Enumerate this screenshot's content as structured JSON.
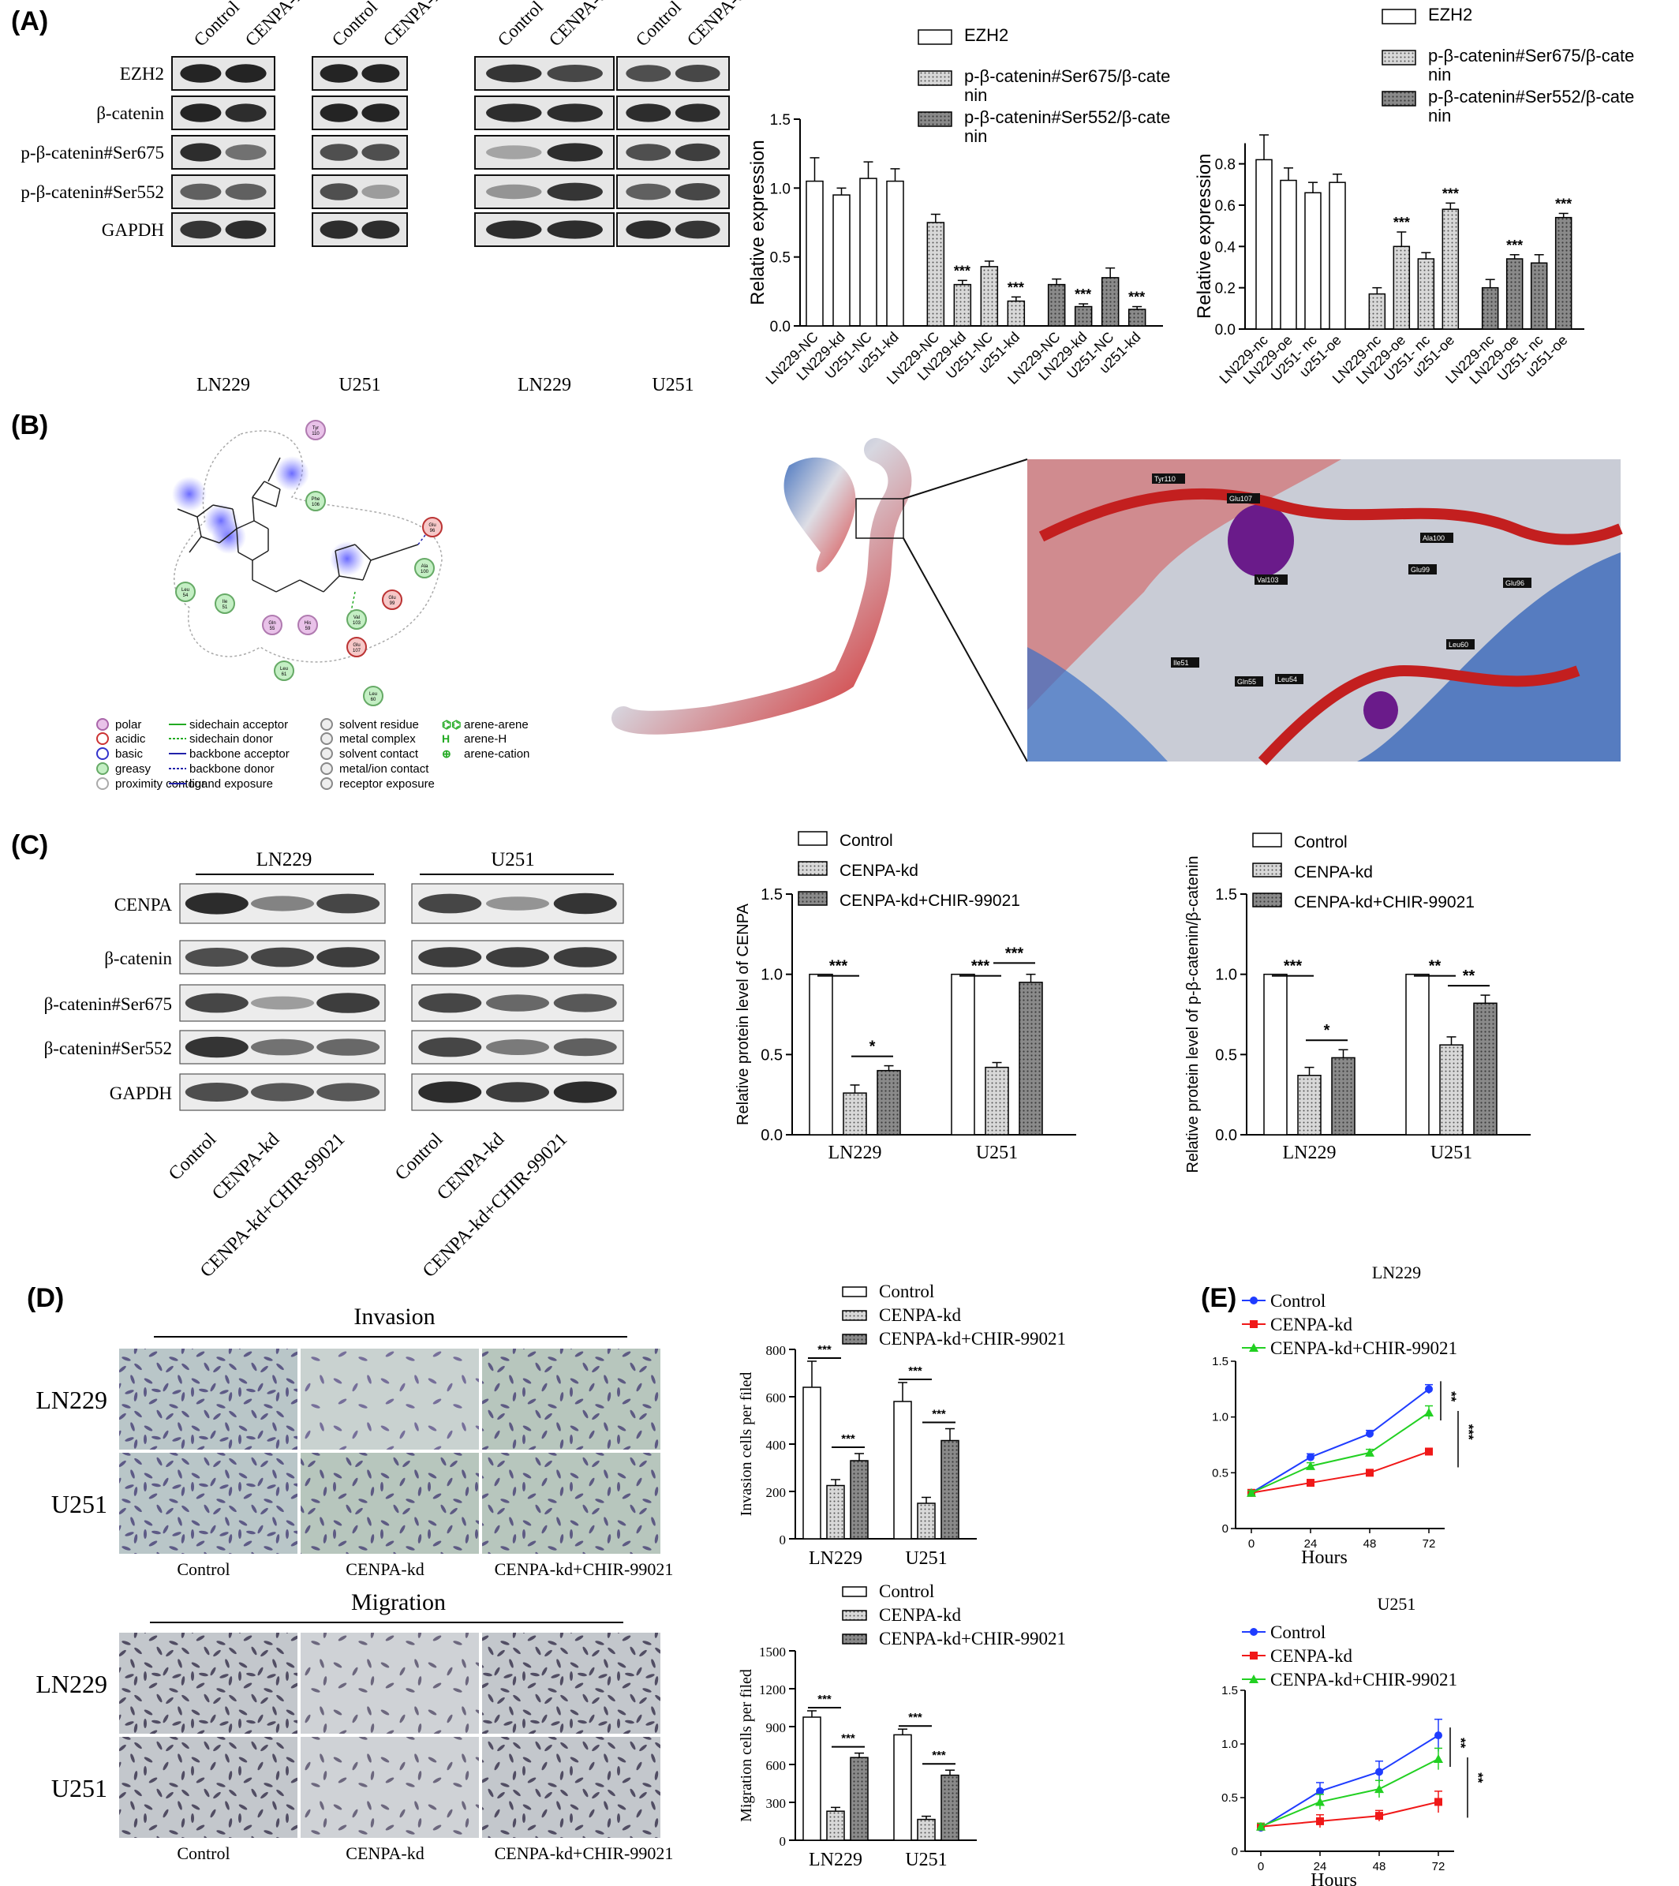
{
  "panels": {
    "A": {
      "letter": "(A)",
      "blot": {
        "lane_labels": [
          "Control",
          "CENPA-kd",
          "Control",
          "CENPA-kd",
          "Control",
          "CENPA-oe",
          "Control",
          "CENPA-oe"
        ],
        "rows": [
          "EZH2",
          "β-catenin",
          "p-β-catenin#Ser675",
          "p-β-catenin#Ser552",
          "GAPDH"
        ],
        "cell_lines": [
          "LN229",
          "U251",
          "LN229",
          "U251"
        ]
      },
      "legend": [
        "EZH2",
        "p-β-catenin#Ser675/β-cate nin",
        "p-β-catenin#Ser552/β-cate nin"
      ]
    },
    "B": {
      "letter": "(B)",
      "residues": [
        "Tyr 110",
        "Phe 106",
        "Glu 96",
        "Ala 100",
        "Leu 54",
        "Ile 51",
        "Gln 55",
        "His 59",
        "Val 103",
        "Glu 99",
        "Glu 107",
        "Leu 61",
        "Leu 60"
      ],
      "legend": [
        [
          "polar",
          "sidechain acceptor",
          "solvent residue",
          "arene-arene"
        ],
        [
          "acidic",
          "sidechain donor",
          "metal complex",
          "arene-H"
        ],
        [
          "basic",
          "backbone acceptor",
          "solvent contact",
          "arene-cation"
        ],
        [
          "greasy",
          "backbone donor",
          "metal/ion contact",
          ""
        ],
        [
          "proximity contour",
          "ligand exposure",
          "receptor exposure",
          ""
        ]
      ],
      "zoom_labels": [
        "Tyr110",
        "Glu107",
        "Ala100",
        "Val103",
        "Glu99",
        "Glu96",
        "Leu60",
        "Ile51",
        "Gln55",
        "Leu54"
      ]
    },
    "C": {
      "letter": "(C)",
      "blot": {
        "cell_lines": [
          "LN229",
          "U251"
        ],
        "rows": [
          "CENPA",
          "β-catenin",
          "β-catenin#Ser675",
          "β-catenin#Ser552",
          "GAPDH"
        ],
        "lane_labels": [
          "Control",
          "CENPA-kd",
          "CENPA-kd+CHIR-99021",
          "Control",
          "CENPA-kd",
          "CENPA-kd+CHIR-99021"
        ]
      },
      "legend": [
        "Control",
        "CENPA-kd",
        "CENPA-kd+CHIR-99021"
      ]
    },
    "D": {
      "letter": "(D)",
      "invasion_title": "Invasion",
      "migration_title": "Migration",
      "row_labels": [
        "LN229",
        "U251"
      ],
      "col_labels": [
        "Control",
        "CENPA-kd",
        "CENPA-kd+CHIR-99021"
      ],
      "legend": [
        "Control",
        "CENPA-kd",
        "CENPA-kd+CHIR-99021"
      ]
    },
    "E": {
      "letter": "(E)",
      "legend": [
        "Control",
        "CENPA-kd",
        "CENPA-kd+CHIR-99021"
      ]
    }
  },
  "colors": {
    "blue": "#1f3cff",
    "red": "#f01818",
    "green": "#22d022",
    "blot_bg": "#dcdcdc",
    "band": "#202020"
  },
  "chart_data": [
    {
      "id": "A1",
      "type": "bar",
      "categories": [
        "LN229-NC",
        "LN229-kd",
        "U251-NC",
        "u251-kd"
      ],
      "series": [
        {
          "name": "EZH2",
          "values": [
            1.05,
            0.95,
            1.07,
            1.05
          ],
          "errors": [
            0.17,
            0.05,
            0.12,
            0.09
          ]
        },
        {
          "name": "p-β-catenin#Ser675/β-cate nin",
          "values": [
            0.75,
            0.3,
            0.43,
            0.18
          ],
          "errors": [
            0.06,
            0.03,
            0.04,
            0.03
          ]
        },
        {
          "name": "p-β-catenin#Ser552/β-cate nin",
          "values": [
            0.3,
            0.14,
            0.35,
            0.12
          ],
          "errors": [
            0.04,
            0.02,
            0.07,
            0.02
          ]
        }
      ],
      "annotations": [
        "",
        "***",
        "",
        "***"
      ],
      "ylabel": "Relative expression",
      "ylim": [
        0,
        1.5
      ],
      "yticks": [
        "0.0",
        "0.5",
        "1.0",
        "1.5"
      ]
    },
    {
      "id": "A2",
      "type": "bar",
      "categories": [
        "LN229-nc",
        "LN229-oe",
        "U251- nc",
        "u251-oe"
      ],
      "series": [
        {
          "name": "EZH2",
          "values": [
            0.82,
            0.72,
            0.66,
            0.71
          ],
          "errors": [
            0.12,
            0.06,
            0.05,
            0.04
          ]
        },
        {
          "name": "p-β-catenin#Ser675/β-cate nin",
          "values": [
            0.17,
            0.4,
            0.34,
            0.58
          ],
          "errors": [
            0.03,
            0.07,
            0.03,
            0.03
          ]
        },
        {
          "name": "p-β-catenin#Ser552/β-cate nin",
          "values": [
            0.2,
            0.34,
            0.32,
            0.54
          ],
          "errors": [
            0.04,
            0.02,
            0.04,
            0.02
          ]
        }
      ],
      "annotations": [
        "",
        "***",
        "",
        "***"
      ],
      "ylabel": "Relative expression",
      "ylim": [
        0,
        0.9
      ],
      "yticks": [
        "0.0",
        "0.2",
        "0.4",
        "0.6",
        "0.8"
      ]
    },
    {
      "id": "C1",
      "type": "bar",
      "categories": [
        "LN229",
        "U251"
      ],
      "series": [
        {
          "name": "Control",
          "values": [
            1.0,
            1.0
          ],
          "errors": [
            0,
            0
          ]
        },
        {
          "name": "CENPA-kd",
          "values": [
            0.26,
            0.42
          ],
          "errors": [
            0.05,
            0.03
          ]
        },
        {
          "name": "CENPA-kd+CHIR-99021",
          "values": [
            0.4,
            0.95
          ],
          "errors": [
            0.03,
            0.05
          ]
        }
      ],
      "annotations": [
        [
          "***",
          "*"
        ],
        [
          "***",
          "***"
        ]
      ],
      "ylabel": "Relative protein level of CENPA",
      "ylim": [
        0,
        1.5
      ],
      "yticks": [
        "0.0",
        "0.5",
        "1.0",
        "1.5"
      ]
    },
    {
      "id": "C2",
      "type": "bar",
      "categories": [
        "LN229",
        "U251"
      ],
      "series": [
        {
          "name": "Control",
          "values": [
            1.0,
            1.0
          ],
          "errors": [
            0,
            0
          ]
        },
        {
          "name": "CENPA-kd",
          "values": [
            0.37,
            0.56
          ],
          "errors": [
            0.05,
            0.05
          ]
        },
        {
          "name": "CENPA-kd+CHIR-99021",
          "values": [
            0.48,
            0.82
          ],
          "errors": [
            0.05,
            0.05
          ]
        }
      ],
      "annotations": [
        [
          "***",
          "*"
        ],
        [
          "**",
          "**"
        ]
      ],
      "ylabel": "Relative protein level of p-β-catenin/β-catenin",
      "ylim": [
        0,
        1.5
      ],
      "yticks": [
        "0.0",
        "0.5",
        "1.0",
        "1.5"
      ]
    },
    {
      "id": "D1",
      "type": "bar",
      "categories": [
        "LN229",
        "U251"
      ],
      "series": [
        {
          "name": "Control",
          "values": [
            640,
            580
          ],
          "errors": [
            110,
            80
          ]
        },
        {
          "name": "CENPA-kd",
          "values": [
            225,
            150
          ],
          "errors": [
            25,
            25
          ]
        },
        {
          "name": "CENPA-kd+CHIR-99021",
          "values": [
            330,
            415
          ],
          "errors": [
            30,
            50
          ]
        }
      ],
      "annotations": [
        [
          "***",
          "***"
        ],
        [
          "***",
          "***"
        ]
      ],
      "ylabel": "Invasion cells per filed",
      "ylim": [
        0,
        800
      ],
      "yticks": [
        "0",
        "200",
        "400",
        "600",
        "800"
      ]
    },
    {
      "id": "D2",
      "type": "bar",
      "categories": [
        "LN229",
        "U251"
      ],
      "series": [
        {
          "name": "Control",
          "values": [
            975,
            835
          ],
          "errors": [
            50,
            45
          ]
        },
        {
          "name": "CENPA-kd",
          "values": [
            230,
            165
          ],
          "errors": [
            30,
            25
          ]
        },
        {
          "name": "CENPA-kd+CHIR-99021",
          "values": [
            655,
            515
          ],
          "errors": [
            35,
            40
          ]
        }
      ],
      "annotations": [
        [
          "***",
          "***"
        ],
        [
          "***",
          "***"
        ]
      ],
      "ylabel": "Migration cells per filed",
      "ylim": [
        0,
        1500
      ],
      "yticks": [
        "0",
        "300",
        "600",
        "900",
        "1200",
        "1500"
      ]
    },
    {
      "id": "E1",
      "type": "line",
      "title": "LN229",
      "x": [
        0,
        24,
        48,
        72
      ],
      "series": [
        {
          "name": "Control",
          "values": [
            0.32,
            0.64,
            0.85,
            1.25
          ],
          "errors": [
            0.02,
            0.03,
            0.03,
            0.04
          ]
        },
        {
          "name": "CENPA-kd",
          "values": [
            0.32,
            0.41,
            0.5,
            0.69
          ],
          "errors": [
            0.02,
            0.02,
            0.02,
            0.03
          ]
        },
        {
          "name": "CENPA-kd+CHIR-99021",
          "values": [
            0.32,
            0.56,
            0.68,
            1.04
          ],
          "errors": [
            0.02,
            0.03,
            0.03,
            0.06
          ]
        }
      ],
      "annotations": [
        "**",
        "***"
      ],
      "xlabel": "Hours",
      "ylim": [
        0,
        1.5
      ],
      "yticks": [
        "0",
        "0.5",
        "1.0",
        "1.5"
      ]
    },
    {
      "id": "E2",
      "type": "line",
      "title": "U251",
      "x": [
        0,
        24,
        48,
        72
      ],
      "series": [
        {
          "name": "Control",
          "values": [
            0.22,
            0.56,
            0.74,
            1.08
          ],
          "errors": [
            0.03,
            0.08,
            0.1,
            0.15
          ]
        },
        {
          "name": "CENPA-kd",
          "values": [
            0.23,
            0.28,
            0.33,
            0.46
          ],
          "errors": [
            0.03,
            0.06,
            0.05,
            0.1
          ]
        },
        {
          "name": "CENPA-kd+CHIR-99021",
          "values": [
            0.23,
            0.46,
            0.58,
            0.86
          ],
          "errors": [
            0.03,
            0.07,
            0.08,
            0.1
          ]
        }
      ],
      "annotations": [
        "**",
        "**"
      ],
      "xlabel": "Hours",
      "ylim": [
        0,
        1.5
      ],
      "yticks": [
        "0",
        "0.5",
        "1.0",
        "1.5"
      ]
    }
  ]
}
